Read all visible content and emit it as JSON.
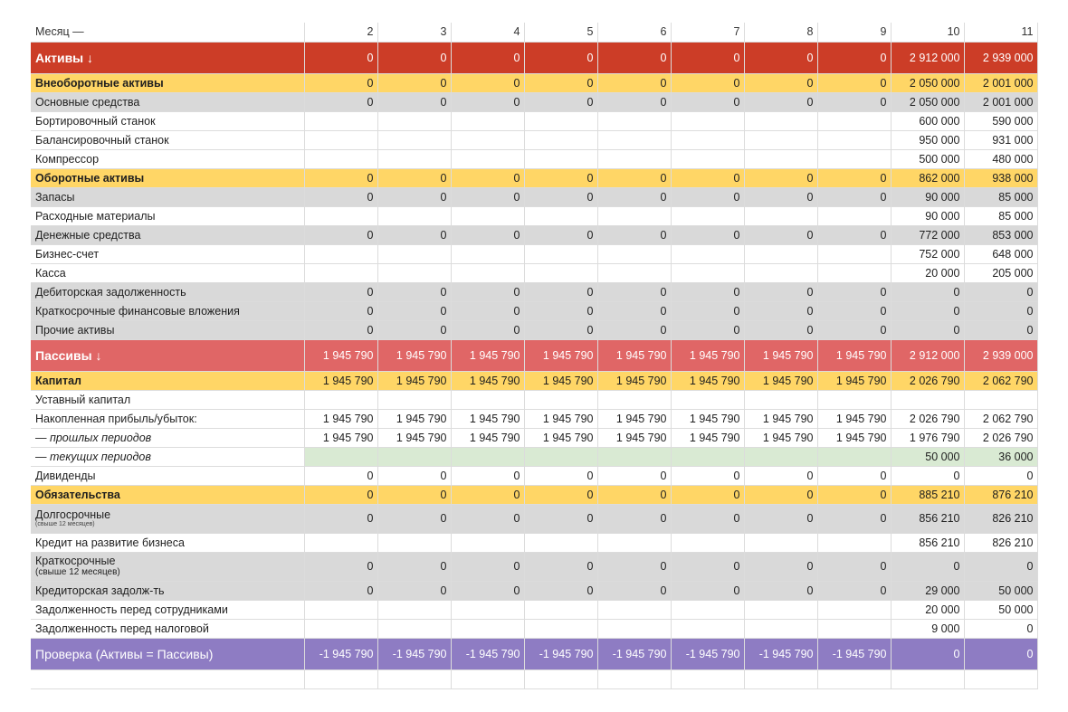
{
  "header": {
    "label": "Месяц —",
    "months": [
      "2",
      "3",
      "4",
      "5",
      "6",
      "7",
      "8",
      "9",
      "10",
      "11"
    ]
  },
  "rows": [
    {
      "type": "red",
      "label": "Активы ↓",
      "values": [
        "0",
        "0",
        "0",
        "0",
        "0",
        "0",
        "0",
        "0",
        "2 912 000",
        "2 939 000"
      ]
    },
    {
      "type": "yellow",
      "label": "Внеоборотные активы",
      "values": [
        "0",
        "0",
        "0",
        "0",
        "0",
        "0",
        "0",
        "0",
        "2 050 000",
        "2 001 000"
      ]
    },
    {
      "type": "gray",
      "label": "Основные средства",
      "values": [
        "0",
        "0",
        "0",
        "0",
        "0",
        "0",
        "0",
        "0",
        "2 050 000",
        "2 001 000"
      ]
    },
    {
      "type": "white",
      "label": "Бортировочный станок",
      "values": [
        "",
        "",
        "",
        "",
        "",
        "",
        "",
        "",
        "600 000",
        "590 000"
      ]
    },
    {
      "type": "white",
      "label": "Балансировочный станок",
      "values": [
        "",
        "",
        "",
        "",
        "",
        "",
        "",
        "",
        "950 000",
        "931 000"
      ]
    },
    {
      "type": "white",
      "label": "Компрессор",
      "values": [
        "",
        "",
        "",
        "",
        "",
        "",
        "",
        "",
        "500 000",
        "480 000"
      ]
    },
    {
      "type": "yellow",
      "label": "Оборотные активы",
      "values": [
        "0",
        "0",
        "0",
        "0",
        "0",
        "0",
        "0",
        "0",
        "862 000",
        "938 000"
      ]
    },
    {
      "type": "gray",
      "label": "Запасы",
      "values": [
        "0",
        "0",
        "0",
        "0",
        "0",
        "0",
        "0",
        "0",
        "90 000",
        "85 000"
      ]
    },
    {
      "type": "white",
      "label": "Расходные материалы",
      "values": [
        "",
        "",
        "",
        "",
        "",
        "",
        "",
        "",
        "90 000",
        "85 000"
      ]
    },
    {
      "type": "gray",
      "label": "Денежные средства",
      "values": [
        "0",
        "0",
        "0",
        "0",
        "0",
        "0",
        "0",
        "0",
        "772 000",
        "853 000"
      ]
    },
    {
      "type": "white",
      "label": "Бизнес-счет",
      "values": [
        "",
        "",
        "",
        "",
        "",
        "",
        "",
        "",
        "752 000",
        "648 000"
      ]
    },
    {
      "type": "white",
      "label": "Касса",
      "values": [
        "",
        "",
        "",
        "",
        "",
        "",
        "",
        "",
        "20 000",
        "205 000"
      ]
    },
    {
      "type": "gray",
      "label": "Дебиторская задолженность",
      "values": [
        "0",
        "0",
        "0",
        "0",
        "0",
        "0",
        "0",
        "0",
        "0",
        "0"
      ]
    },
    {
      "type": "gray",
      "label": "Краткосрочные финансовые вложения",
      "values": [
        "0",
        "0",
        "0",
        "0",
        "0",
        "0",
        "0",
        "0",
        "0",
        "0"
      ]
    },
    {
      "type": "gray",
      "label": "Прочие активы",
      "values": [
        "0",
        "0",
        "0",
        "0",
        "0",
        "0",
        "0",
        "0",
        "0",
        "0"
      ]
    },
    {
      "type": "pink",
      "label": "Пассивы ↓",
      "values": [
        "1 945 790",
        "1 945 790",
        "1 945 790",
        "1 945 790",
        "1 945 790",
        "1 945 790",
        "1 945 790",
        "1 945 790",
        "2 912 000",
        "2 939 000"
      ]
    },
    {
      "type": "yellow",
      "label": "Капитал",
      "values": [
        "1 945 790",
        "1 945 790",
        "1 945 790",
        "1 945 790",
        "1 945 790",
        "1 945 790",
        "1 945 790",
        "1 945 790",
        "2 026 790",
        "2 062 790"
      ]
    },
    {
      "type": "white",
      "label": "Уставный капитал",
      "values": [
        "",
        "",
        "",
        "",
        "",
        "",
        "",
        "",
        "",
        ""
      ]
    },
    {
      "type": "white",
      "label": "Накопленная прибыль/убыток:",
      "values": [
        "1 945 790",
        "1 945 790",
        "1 945 790",
        "1 945 790",
        "1 945 790",
        "1 945 790",
        "1 945 790",
        "1 945 790",
        "2 026 790",
        "2 062 790"
      ]
    },
    {
      "type": "italic",
      "label": "— прошлых периодов",
      "values": [
        "1 945 790",
        "1 945 790",
        "1 945 790",
        "1 945 790",
        "1 945 790",
        "1 945 790",
        "1 945 790",
        "1 945 790",
        "1 976 790",
        "2 026 790"
      ]
    },
    {
      "type": "green",
      "label": "— текущих периодов",
      "values": [
        "",
        "",
        "",
        "",
        "",
        "",
        "",
        "",
        "50 000",
        "36 000"
      ]
    },
    {
      "type": "white",
      "label": "Дивиденды",
      "values": [
        "0",
        "0",
        "0",
        "0",
        "0",
        "0",
        "0",
        "0",
        "0",
        "0"
      ]
    },
    {
      "type": "yellow",
      "label": "Обязательства",
      "values": [
        "0",
        "0",
        "0",
        "0",
        "0",
        "0",
        "0",
        "0",
        "885 210",
        "876 210"
      ]
    },
    {
      "type": "gray",
      "label": "Долгосрочные",
      "sublabel": "(свыше 12 месяцев)",
      "subsize": "tiny",
      "values": [
        "0",
        "0",
        "0",
        "0",
        "0",
        "0",
        "0",
        "0",
        "856 210",
        "826 210"
      ]
    },
    {
      "type": "white",
      "label": "Кредит на развитие бизнеса",
      "values": [
        "",
        "",
        "",
        "",
        "",
        "",
        "",
        "",
        "856 210",
        "826 210"
      ]
    },
    {
      "type": "gray",
      "label": "Краткосрочные",
      "sublabel": "(свыше 12 месяцев)",
      "subsize": "small",
      "values": [
        "0",
        "0",
        "0",
        "0",
        "0",
        "0",
        "0",
        "0",
        "0",
        "0"
      ]
    },
    {
      "type": "gray",
      "label": "Кредиторская задолж-ть",
      "values": [
        "0",
        "0",
        "0",
        "0",
        "0",
        "0",
        "0",
        "0",
        "29 000",
        "50 000"
      ]
    },
    {
      "type": "white",
      "label": "Задолженность перед сотрудниками",
      "values": [
        "",
        "",
        "",
        "",
        "",
        "",
        "",
        "",
        "20 000",
        "50 000"
      ]
    },
    {
      "type": "white",
      "label": "Задолженность перед налоговой",
      "values": [
        "",
        "",
        "",
        "",
        "",
        "",
        "",
        "",
        "9 000",
        "0"
      ]
    },
    {
      "type": "purple",
      "label": "Проверка (Активы = Пассивы)",
      "values": [
        "-1 945 790",
        "-1 945 790",
        "-1 945 790",
        "-1 945 790",
        "-1 945 790",
        "-1 945 790",
        "-1 945 790",
        "-1 945 790",
        "0",
        "0"
      ]
    },
    {
      "type": "white",
      "label": "",
      "values": [
        "",
        "",
        "",
        "",
        "",
        "",
        "",
        "",
        "",
        ""
      ]
    }
  ]
}
